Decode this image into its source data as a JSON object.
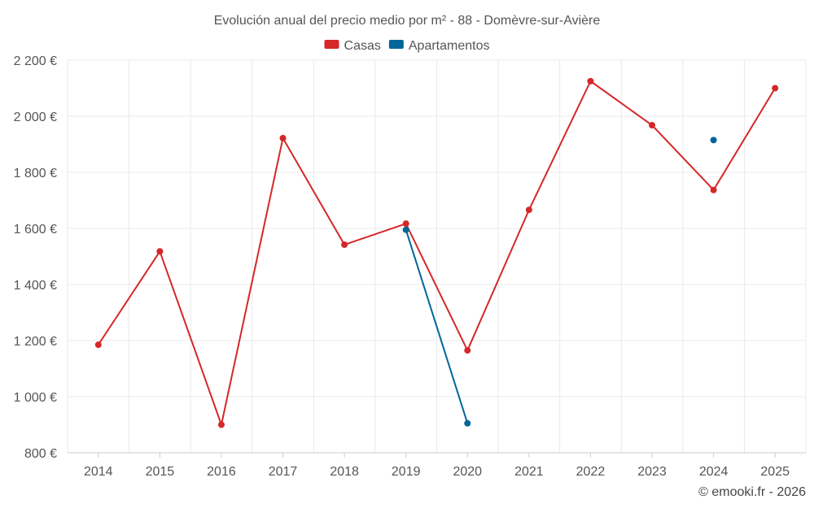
{
  "chart_data": {
    "type": "line",
    "title": "Evolución anual del precio medio por m² - 88 - Domèvre-sur-Avière",
    "categories": [
      "2014",
      "2015",
      "2016",
      "2017",
      "2018",
      "2019",
      "2020",
      "2021",
      "2022",
      "2023",
      "2024",
      "2025"
    ],
    "series": [
      {
        "name": "Casas",
        "color": "#d62728",
        "values": [
          1185,
          1518,
          900,
          1922,
          1542,
          1617,
          1165,
          1666,
          2125,
          1968,
          1737,
          2100
        ]
      },
      {
        "name": "Apartamentos",
        "color": "#006699",
        "values": [
          null,
          null,
          null,
          null,
          null,
          1595,
          905,
          null,
          null,
          null,
          1915,
          null
        ]
      }
    ],
    "ylim": [
      800,
      2200
    ],
    "yticks": [
      800,
      1000,
      1200,
      1400,
      1600,
      1800,
      2000,
      2200
    ],
    "ytick_labels": [
      "800 €",
      "1 000 €",
      "1 200 €",
      "1 400 €",
      "1 600 €",
      "1 800 €",
      "2 000 €",
      "2 200 €"
    ],
    "grid": true,
    "legend_position": "top-center",
    "xlabel": "",
    "ylabel": ""
  },
  "credit": "© emooki.fr - 2026"
}
